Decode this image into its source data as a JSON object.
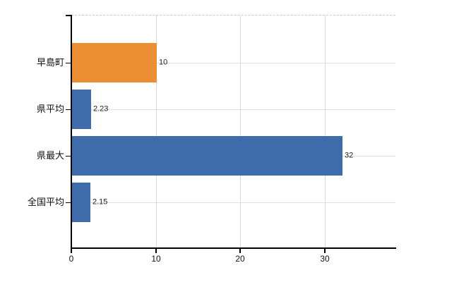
{
  "chart_data": {
    "type": "bar",
    "orientation": "horizontal",
    "title": "",
    "xlabel": "",
    "ylabel": "",
    "categories": [
      "早島町",
      "県平均",
      "県最大",
      "全国平均"
    ],
    "values": [
      10,
      2.23,
      32,
      2.15
    ],
    "value_labels": [
      "10",
      "2.23",
      "32",
      "2.15"
    ],
    "bar_colors": [
      "#ec8f34",
      "#3e6cab",
      "#3e6cab",
      "#3e6cab"
    ],
    "x_ticks": [
      0,
      10,
      20,
      30
    ],
    "x_tick_labels": [
      "0",
      "10",
      "20",
      "30"
    ],
    "xlim": [
      0,
      38.4
    ],
    "grid": "on",
    "legend": "none",
    "colors": {
      "bar_blue": "#3e6cab",
      "bar_orange": "#ec8f34",
      "axis": "#000000",
      "gridline_vertical": "#d9d9d9",
      "gridline_horizontal": "#dbe1db",
      "top_border_dashed": "#c9c9c9",
      "background": "#ffffff",
      "text": "#111111"
    }
  }
}
